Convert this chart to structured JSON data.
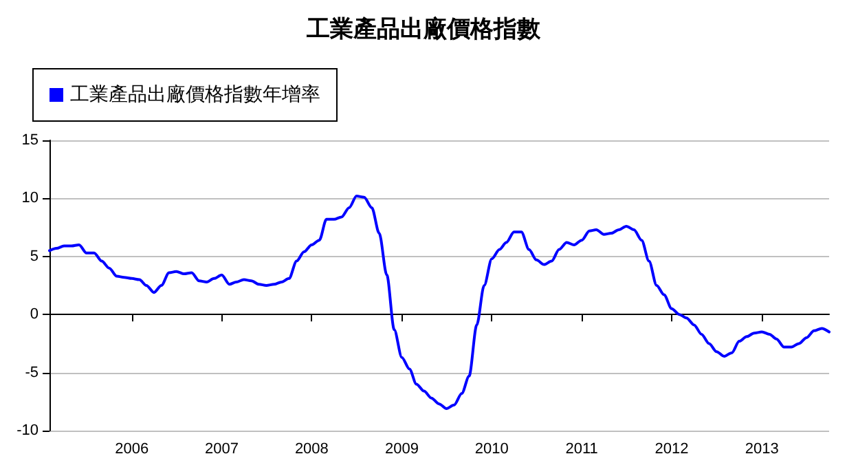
{
  "chart_data": {
    "type": "line",
    "title": "工業產品出廠價格指數",
    "x": [
      "2005-02",
      "2005-03",
      "2005-04",
      "2005-05",
      "2005-06",
      "2005-07",
      "2005-08",
      "2005-09",
      "2005-10",
      "2005-11",
      "2005-12",
      "2006-01",
      "2006-02",
      "2006-03",
      "2006-04",
      "2006-05",
      "2006-06",
      "2006-07",
      "2006-08",
      "2006-09",
      "2006-10",
      "2006-11",
      "2006-12",
      "2007-01",
      "2007-02",
      "2007-03",
      "2007-04",
      "2007-05",
      "2007-06",
      "2007-07",
      "2007-08",
      "2007-09",
      "2007-10",
      "2007-11",
      "2007-12",
      "2008-01",
      "2008-02",
      "2008-03",
      "2008-04",
      "2008-05",
      "2008-06",
      "2008-07",
      "2008-08",
      "2008-09",
      "2008-10",
      "2008-11",
      "2008-12",
      "2009-01",
      "2009-02",
      "2009-03",
      "2009-04",
      "2009-05",
      "2009-06",
      "2009-07",
      "2009-08",
      "2009-09",
      "2009-10",
      "2009-11",
      "2009-12",
      "2010-01",
      "2010-02",
      "2010-03",
      "2010-04",
      "2010-05",
      "2010-06",
      "2010-07",
      "2010-08",
      "2010-09",
      "2010-10",
      "2010-11",
      "2010-12",
      "2011-01",
      "2011-02",
      "2011-03",
      "2011-04",
      "2011-05",
      "2011-06",
      "2011-07",
      "2011-08",
      "2011-09",
      "2011-10",
      "2011-11",
      "2011-12",
      "2012-01",
      "2012-02",
      "2012-03",
      "2012-04",
      "2012-05",
      "2012-06",
      "2012-07",
      "2012-08",
      "2012-09",
      "2012-10",
      "2012-11",
      "2012-12",
      "2013-01",
      "2013-02",
      "2013-03",
      "2013-04",
      "2013-05",
      "2013-06",
      "2013-07",
      "2013-08",
      "2013-09",
      "2013-10"
    ],
    "series": [
      {
        "name": "工業產品出廠價格指數年增率",
        "color": "#0000ff",
        "values": [
          5.5,
          5.7,
          5.9,
          5.9,
          6.0,
          5.3,
          5.3,
          4.6,
          4.0,
          3.3,
          3.2,
          3.1,
          3.0,
          2.5,
          1.9,
          2.5,
          3.6,
          3.7,
          3.5,
          3.6,
          2.9,
          2.8,
          3.1,
          3.4,
          2.6,
          2.8,
          3.0,
          2.9,
          2.6,
          2.5,
          2.6,
          2.8,
          3.1,
          4.6,
          5.4,
          6.0,
          6.4,
          8.2,
          8.2,
          8.4,
          9.2,
          10.2,
          10.1,
          9.2,
          7.0,
          3.4,
          -1.3,
          -3.7,
          -4.7,
          -6.0,
          -6.6,
          -7.2,
          -7.7,
          -8.1,
          -7.8,
          -6.8,
          -5.3,
          -0.9,
          2.5,
          4.8,
          5.6,
          6.2,
          7.1,
          7.1,
          5.6,
          4.7,
          4.3,
          4.6,
          5.6,
          6.2,
          6.0,
          6.4,
          7.2,
          7.3,
          6.9,
          7.0,
          7.3,
          7.6,
          7.3,
          6.4,
          4.6,
          2.5,
          1.7,
          0.5,
          0,
          -0.3,
          -0.9,
          -1.7,
          -2.5,
          -3.2,
          -3.6,
          -3.3,
          -2.3,
          -1.9,
          -1.6,
          -1.5,
          -1.7,
          -2.1,
          -2.8,
          -2.8,
          -2.5,
          -2.0,
          -1.4,
          -1.2,
          -1.5
        ]
      }
    ],
    "xlim": [
      "2005-02",
      "2013-10"
    ],
    "xticks": [
      "2006",
      "2007",
      "2008",
      "2009",
      "2010",
      "2011",
      "2012",
      "2013"
    ],
    "ylim": [
      -10,
      15
    ],
    "yticks": [
      -10,
      -5,
      0,
      5,
      10,
      15
    ],
    "grid": "y",
    "legend": "top left",
    "marker": "none",
    "line_style": "solid"
  }
}
